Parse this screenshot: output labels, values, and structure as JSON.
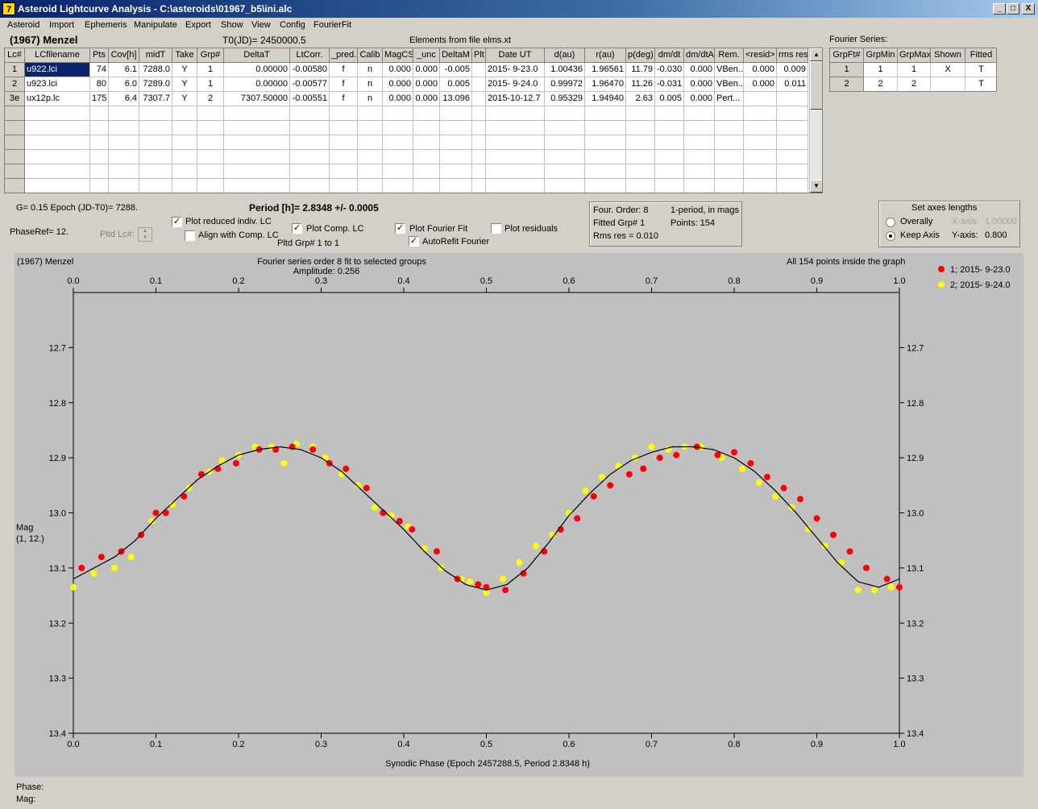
{
  "window": {
    "icon_label": "7",
    "title": "Asteroid Lightcurve Analysis - C:\\asteroids\\01967_b5\\ini.alc",
    "minimize": "_",
    "maximize": "□",
    "close": "X"
  },
  "menu": [
    "Asteroid",
    "Import",
    "Ephemeris",
    "Manipulate",
    "Export",
    "Show",
    "View",
    "Config",
    "FourierFit"
  ],
  "header": {
    "asteroid_name": "(1967) Menzel",
    "t0": "T0(JD)= 2450000.5",
    "elements": "Elements from file elms.xt"
  },
  "lc_table": {
    "columns": [
      "Lc#",
      "LCfilename",
      "Pts",
      "Cov[h]",
      "midT",
      "Take",
      "Grp#",
      "DeltaT",
      "LtCorr.",
      "_pred.",
      "Calib",
      "MagCS",
      "_unc",
      "DeltaM",
      "Plt",
      "Date UT",
      "d(au)",
      "r(au)",
      "p(deg)",
      "dm/dt",
      "dm/dtA",
      "Rem.",
      "<resid>",
      "rms res"
    ],
    "rows": [
      [
        "1",
        "u922.lci",
        "74",
        "6.1",
        "7288.0",
        "Y",
        "1",
        "0.00000",
        "-0.00580",
        "f",
        "n",
        "0.000",
        "0.000",
        "-0.005",
        "",
        "2015- 9-23.0",
        "1.00436",
        "1.96561",
        "11.79",
        "-0.030",
        "0.000",
        "VBen..",
        "0.000",
        "0.009"
      ],
      [
        "2",
        "u923.lci",
        "80",
        "6.0",
        "7289.0",
        "Y",
        "1",
        "0.00000",
        "-0.00577",
        "f",
        "n",
        "0.000",
        "0.000",
        "0.005",
        "",
        "2015- 9-24.0",
        "0.99972",
        "1.96470",
        "11.26",
        "-0.031",
        "0.000",
        "VBen..",
        "0.000",
        "0.011"
      ],
      [
        "3e",
        "ux12p.lc",
        "175",
        "6.4",
        "7307.7",
        "Y",
        "2",
        "7307.50000",
        "-0.00551",
        "f",
        "n",
        "0.000",
        "0.000",
        "13.096",
        "",
        "2015-10-12.7",
        "0.95329",
        "1.94940",
        "2.63",
        "0.005",
        "0.000",
        "Pert...",
        "",
        ""
      ]
    ]
  },
  "fourier_series": {
    "label": "Fourier Series:",
    "columns": [
      "GrpFt#",
      "GrpMin",
      "GrpMax",
      "Shown",
      "Fitted"
    ],
    "rows": [
      [
        "1",
        "1",
        "1",
        "X",
        "T"
      ],
      [
        "2",
        "2",
        "2",
        "",
        "T"
      ]
    ]
  },
  "controls": {
    "g_epoch": "G= 0.15   Epoch (JD-T0)= 7288.",
    "period": "Period [h]= 2.8348 +/- 0.0005",
    "phaseref": "PhaseRef= 12.",
    "pltd_lc": "Pltd Lc#:",
    "plot_reduced": "Plot reduced indiv. LC",
    "align_comp": "Align with Comp. LC",
    "plot_comp": "Plot Comp. LC",
    "pltd_grp": "Pltd Grp#  1   to   1",
    "plot_fourier": "Plot Fourier Fit",
    "autorefit": "AutoRefit Fourier",
    "plot_residuals": "Plot residuals"
  },
  "fit_info": {
    "order": "Four. Order:  8",
    "period_mode": "1-period, in mags",
    "fitted_grp": "Fitted Grp# 1",
    "points": "Points: 154",
    "rms": "Rms res     = 0.010"
  },
  "axes_box": {
    "title": "Set axes lengths",
    "overally": "Overally",
    "keep_axis": "Keep Axis",
    "x_axis_label": "X-axis:",
    "x_axis_value": "1.00000",
    "y_axis_label": "Y-axis:",
    "y_axis_value": "0.800"
  },
  "plot": {
    "name": "(1967) Menzel",
    "fit_title": "Fourier series order 8 fit to selected groups",
    "amplitude": "Amplitude: 0.256",
    "points_note": "All 154 points inside the graph",
    "ylabel": "Mag",
    "ylabel2": "(1, 12.)",
    "xlabel": "Synodic Phase (Epoch 2457288.5, Period 2.8348 h)"
  },
  "status": {
    "phase": "Phase:",
    "mag": "Mag:"
  },
  "colors": {
    "series1": "#ff0000",
    "series2": "#ffff00",
    "plot_bg": "#c0c0c0",
    "selection": "#0a246a"
  },
  "chart_data": {
    "type": "scatter",
    "xlabel": "Synodic Phase (Epoch 2457288.5, Period 2.8348 h)",
    "ylabel": "Mag",
    "xlim": [
      0.0,
      1.0
    ],
    "ylim": [
      13.4,
      12.6
    ],
    "y_inverted": true,
    "xticks": [
      "0.0",
      "0.1",
      "0.2",
      "0.3",
      "0.4",
      "0.5",
      "0.6",
      "0.7",
      "0.8",
      "0.9",
      "1.0"
    ],
    "yticks": [
      "12.7",
      "12.8",
      "12.9",
      "13.0",
      "13.1",
      "13.2",
      "13.3",
      "13.4"
    ],
    "legend_position": "top-right",
    "fit_curve": {
      "x": [
        0.0,
        0.025,
        0.05,
        0.075,
        0.1,
        0.125,
        0.15,
        0.175,
        0.2,
        0.225,
        0.25,
        0.275,
        0.3,
        0.325,
        0.35,
        0.375,
        0.4,
        0.425,
        0.45,
        0.475,
        0.5,
        0.525,
        0.55,
        0.575,
        0.6,
        0.625,
        0.65,
        0.675,
        0.7,
        0.725,
        0.75,
        0.775,
        0.8,
        0.825,
        0.85,
        0.875,
        0.9,
        0.925,
        0.95,
        0.975,
        1.0
      ],
      "y": [
        13.12,
        13.1,
        13.08,
        13.05,
        13.01,
        12.975,
        12.94,
        12.915,
        12.895,
        12.885,
        12.88,
        12.885,
        12.9,
        12.925,
        12.96,
        12.995,
        13.03,
        13.07,
        13.105,
        13.13,
        13.14,
        13.13,
        13.1,
        13.055,
        13.005,
        12.965,
        12.93,
        12.905,
        12.89,
        12.88,
        12.88,
        12.885,
        12.9,
        12.925,
        12.96,
        13.0,
        13.045,
        13.09,
        13.125,
        13.135,
        13.12
      ]
    },
    "series": [
      {
        "name": "1; 2015- 9-23.0",
        "color": "#ff0000",
        "points": [
          [
            0.01,
            13.1
          ],
          [
            0.034,
            13.08
          ],
          [
            0.058,
            13.07
          ],
          [
            0.082,
            13.04
          ],
          [
            0.1,
            13.0
          ],
          [
            0.112,
            13.0
          ],
          [
            0.134,
            12.97
          ],
          [
            0.155,
            12.93
          ],
          [
            0.175,
            12.92
          ],
          [
            0.197,
            12.91
          ],
          [
            0.225,
            12.885
          ],
          [
            0.245,
            12.885
          ],
          [
            0.265,
            12.88
          ],
          [
            0.29,
            12.885
          ],
          [
            0.31,
            12.91
          ],
          [
            0.33,
            12.92
          ],
          [
            0.355,
            12.955
          ],
          [
            0.375,
            13.0
          ],
          [
            0.395,
            13.015
          ],
          [
            0.41,
            13.03
          ],
          [
            0.44,
            13.07
          ],
          [
            0.465,
            13.12
          ],
          [
            0.49,
            13.13
          ],
          [
            0.5,
            13.135
          ],
          [
            0.523,
            13.14
          ],
          [
            0.545,
            13.11
          ],
          [
            0.57,
            13.07
          ],
          [
            0.59,
            13.03
          ],
          [
            0.61,
            13.01
          ],
          [
            0.63,
            12.97
          ],
          [
            0.65,
            12.95
          ],
          [
            0.673,
            12.93
          ],
          [
            0.69,
            12.92
          ],
          [
            0.71,
            12.9
          ],
          [
            0.73,
            12.895
          ],
          [
            0.755,
            12.88
          ],
          [
            0.78,
            12.895
          ],
          [
            0.8,
            12.89
          ],
          [
            0.82,
            12.91
          ],
          [
            0.84,
            12.935
          ],
          [
            0.86,
            12.955
          ],
          [
            0.88,
            12.975
          ],
          [
            0.9,
            13.01
          ],
          [
            0.92,
            13.04
          ],
          [
            0.94,
            13.07
          ],
          [
            0.96,
            13.1
          ],
          [
            0.985,
            13.12
          ],
          [
            1.0,
            13.135
          ]
        ]
      },
      {
        "name": "2; 2015- 9-24.0",
        "color": "#ffff00",
        "points": [
          [
            0.0,
            13.135
          ],
          [
            0.025,
            13.11
          ],
          [
            0.05,
            13.1
          ],
          [
            0.07,
            13.08
          ],
          [
            0.095,
            13.015
          ],
          [
            0.12,
            12.985
          ],
          [
            0.14,
            12.955
          ],
          [
            0.165,
            12.925
          ],
          [
            0.18,
            12.905
          ],
          [
            0.2,
            12.895
          ],
          [
            0.22,
            12.88
          ],
          [
            0.24,
            12.88
          ],
          [
            0.255,
            12.91
          ],
          [
            0.27,
            12.875
          ],
          [
            0.29,
            12.88
          ],
          [
            0.305,
            12.9
          ],
          [
            0.325,
            12.93
          ],
          [
            0.345,
            12.95
          ],
          [
            0.365,
            12.99
          ],
          [
            0.385,
            13.005
          ],
          [
            0.405,
            13.025
          ],
          [
            0.425,
            13.065
          ],
          [
            0.445,
            13.1
          ],
          [
            0.47,
            13.12
          ],
          [
            0.48,
            13.125
          ],
          [
            0.5,
            13.145
          ],
          [
            0.52,
            13.12
          ],
          [
            0.54,
            13.09
          ],
          [
            0.56,
            13.06
          ],
          [
            0.58,
            13.04
          ],
          [
            0.6,
            13.0
          ],
          [
            0.62,
            12.96
          ],
          [
            0.64,
            12.935
          ],
          [
            0.66,
            12.915
          ],
          [
            0.68,
            12.9
          ],
          [
            0.7,
            12.88
          ],
          [
            0.72,
            12.885
          ],
          [
            0.74,
            12.88
          ],
          [
            0.76,
            12.88
          ],
          [
            0.785,
            12.9
          ],
          [
            0.81,
            12.92
          ],
          [
            0.83,
            12.945
          ],
          [
            0.85,
            12.97
          ],
          [
            0.87,
            12.99
          ],
          [
            0.89,
            13.03
          ],
          [
            0.91,
            13.06
          ],
          [
            0.93,
            13.09
          ],
          [
            0.95,
            13.14
          ],
          [
            0.97,
            13.14
          ],
          [
            0.99,
            13.135
          ]
        ]
      }
    ]
  }
}
